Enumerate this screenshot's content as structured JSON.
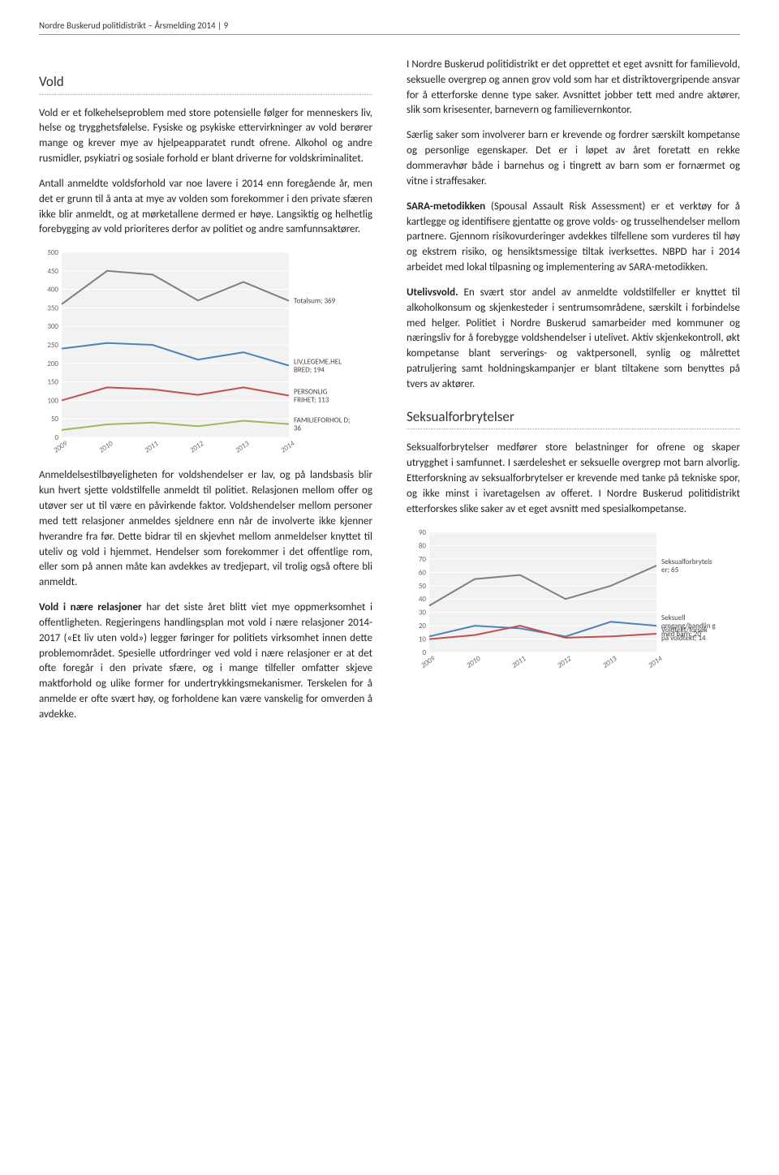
{
  "header": {
    "text": "Nordre Buskerud politidistrikt – Årsmelding 2014 | 9"
  },
  "left": {
    "sec1_title": "Vold",
    "p1": "Vold er et folkehelseproblem med store potensielle følger for menneskers liv, helse og trygghetsfølelse. Fysiske og psykiske ettervirkninger av vold berører mange og krever mye av hjelpeapparatet rundt ofrene. Alkohol og andre rusmidler, psykiatri og sosiale forhold er blant driverne for voldskriminalitet.",
    "p2": "Antall anmeldte voldsforhold var noe lavere i 2014 enn foregående år, men det er grunn til å anta at mye av volden som forekommer i den private sfæren ikke blir anmeldt, og at mørketallene dermed er høye. Langsiktig og helhetlig forebygging av vold prioriteres derfor av politiet og andre samfunnsaktører.",
    "p3": "Anmeldelsestilbøyeligheten for voldshendelser er lav, og på landsbasis blir kun hvert sjette voldstilfelle anmeldt til politiet. Relasjonen mellom offer og utøver ser ut til være en påvirkende faktor. Voldshendelser mellom personer med tett relasjoner anmeldes sjeldnere enn når de involverte ikke kjenner hverandre fra før. Dette bidrar til en skjevhet mellom anmeldelser knyttet til uteliv og vold i hjemmet. Hendelser som forekommer i det offentlige rom, eller som på annen måte kan avdekkes av tredjepart, vil trolig også oftere bli anmeldt.",
    "p4a": "Vold i nære relasjoner",
    "p4b": " har det siste året blitt viet mye oppmerksomhet i offentligheten. Regjeringens handlingsplan mot vold i nære relasjoner 2014-2017 («Et liv uten vold») legger føringer for politiets virksomhet innen dette problemområdet. Spesielle utfordringer ved vold i nære relasjoner er at det ofte foregår i den private sfære, og i mange tilfeller omfatter skjeve maktforhold og ulike former for undertrykkingsmekanismer. Terskelen for å anmelde er ofte svært høy, og forholdene kan være vanskelig for omverden å avdekke."
  },
  "right": {
    "p1": "I Nordre Buskerud politidistrikt er det opprettet et eget avsnitt for familievold, seksuelle overgrep og annen grov vold som har et distriktovergripende ansvar for å etterforske denne type saker. Avsnittet jobber tett med andre aktører, slik som krisesenter, barnevern og familievernkontor.",
    "p2": "Særlig saker som involverer barn er krevende og fordrer særskilt kompetanse og personlige egenskaper. Det er i løpet av året foretatt en rekke dommeravhør både i barnehus og i tingrett av barn som er fornærmet og vitne i straffesaker.",
    "p3a": "SARA-metodikken",
    "p3b": " (Spousal Assault Risk Assessment) er et verktøy for å kartlegge og identifisere gjentatte og grove volds- og trusselhendelser mellom partnere. Gjennom risikovurderinger avdekkes tilfellene som vurderes til høy og ekstrem risiko, og hensiktsmessige tiltak iverksettes. NBPD har i 2014 arbeidet med lokal tilpasning og implementering av SARA-metodikken.",
    "p4a": "Utelivsvold.",
    "p4b": " En svært stor andel av anmeldte voldstilfeller er knyttet til alkoholkonsum og skjenkesteder i sentrumsområdene, særskilt i forbindelse med helger. Politiet i Nordre Buskerud samarbeider med kommuner og næringsliv for å forebygge voldshendelser i utelivet. Aktiv skjenkekontroll, økt kompetanse blant serverings- og vaktpersonell, synlig og målrettet patruljering samt holdningskampanjer er blant tiltakene som benyttes på tvers av aktører.",
    "sec2_title": "Seksualforbrytelser",
    "p5": "Seksualforbrytelser medfører store belastninger for ofrene og skaper utrygghet i samfunnet. I særdeleshet er seksuelle overgrep mot barn alvorlig. Etterforskning av seksualforbrytelser er krevende med tanke på tekniske spor, og ikke minst i ivaretagelsen av offeret. I Nordre Buskerud politidistrikt etterforskes slike saker av et eget avsnitt med spesialkompetanse."
  },
  "chart1": {
    "type": "line",
    "years": [
      "2009",
      "2010",
      "2011",
      "2012",
      "2013",
      "2014"
    ],
    "ylim": [
      0,
      500
    ],
    "ytick_step": 50,
    "background_color": "#ffffff",
    "grid_color": "#d9d9d9",
    "plot_fill": "#f2f2f2",
    "series": [
      {
        "name": "Totalsum",
        "end_label": "Totalsum; 369",
        "color": "#7f7f7f",
        "values": [
          360,
          450,
          440,
          370,
          420,
          369
        ],
        "width": 2
      },
      {
        "name": "LIV,LEGEME,HELBRED",
        "end_label": "LIV,LEGEME,HEL BRED; 194",
        "color": "#4f81bd",
        "values": [
          240,
          255,
          250,
          210,
          230,
          194
        ],
        "width": 2
      },
      {
        "name": "PERSONLIG FRIHET",
        "end_label": "PERSONLIG FRIHET; 113",
        "color": "#c0504d",
        "values": [
          100,
          135,
          130,
          115,
          135,
          113
        ],
        "width": 2
      },
      {
        "name": "FAMILIEFORHOLD",
        "end_label": "FAMILIEFORHOL D; 36",
        "color": "#9bbb59",
        "values": [
          20,
          35,
          40,
          30,
          45,
          36
        ],
        "width": 2
      }
    ]
  },
  "chart2": {
    "type": "line",
    "years": [
      "2009",
      "2010",
      "2011",
      "2012",
      "2013",
      "2014"
    ],
    "ylim": [
      0,
      90
    ],
    "ytick_step": 10,
    "background_color": "#ffffff",
    "grid_color": "#d9d9d9",
    "plot_fill": "#f2f2f2",
    "series": [
      {
        "name": "Seksualforbrytelser",
        "end_label": "Seksualforbrytels er; 65",
        "color": "#7f7f7f",
        "values": [
          35,
          55,
          58,
          40,
          50,
          65
        ],
        "width": 2
      },
      {
        "name": "Seksuell omgang/handling med barn",
        "end_label": "Seksuell omgang/handlin g med barn; 20",
        "color": "#4f81bd",
        "values": [
          12,
          20,
          18,
          12,
          23,
          20
        ],
        "width": 2
      },
      {
        "name": "Voldtekt/forsøk på voldtekt",
        "end_label": "Voldtekt/forsøk på voldtekt; 14",
        "color": "#c0504d",
        "values": [
          10,
          13,
          20,
          11,
          12,
          14
        ],
        "width": 2
      }
    ]
  }
}
